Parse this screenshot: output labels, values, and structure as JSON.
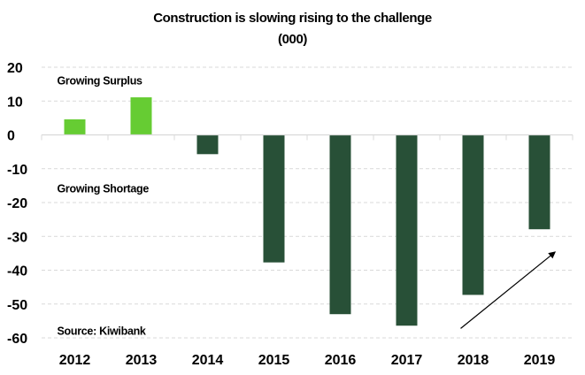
{
  "chart_data": {
    "type": "bar",
    "title": "Construction is slowing rising to the challenge",
    "subtitle": "(000)",
    "xlabel": "",
    "ylabel": "",
    "categories": [
      "2012",
      "2013",
      "2014",
      "2015",
      "2016",
      "2017",
      "2018",
      "2019"
    ],
    "values": [
      4.6,
      11.1,
      -5.7,
      -37.7,
      -53.0,
      -56.4,
      -47.3,
      -27.9
    ],
    "ylim": [
      -60,
      20
    ],
    "yticks": [
      20,
      10,
      0,
      -10,
      -20,
      -30,
      -40,
      -50,
      -60
    ],
    "grid": true,
    "colors": {
      "positive": "#66cc33",
      "negative": "#285037"
    },
    "annotations": [
      {
        "text": "Growing Surplus",
        "x_category": "2012",
        "y": 16
      },
      {
        "text": "Growing Shortage",
        "x_category": "2012",
        "y": -16
      },
      {
        "text": "Source: Kiwibank",
        "x_category": "2012",
        "y": -58
      }
    ],
    "arrow": {
      "from": {
        "x_category": "2018",
        "y": -58
      },
      "to": {
        "x_category": "2019",
        "y": -34
      },
      "meaning": "upward trend"
    },
    "legend": "none"
  }
}
